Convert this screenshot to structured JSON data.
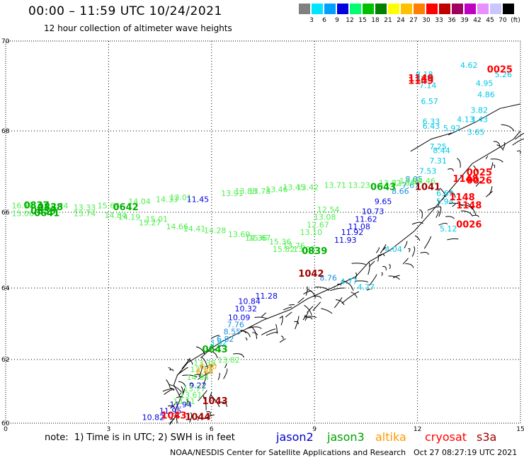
{
  "header": {
    "title": "00:00 – 11:59 UTC 10/24/2021",
    "subtitle": "12 hour collection of altimeter wave heights"
  },
  "legend": {
    "unit": "(ft)",
    "swatches": [
      {
        "color": "#808080",
        "label": "3"
      },
      {
        "color": "#00e5ff",
        "label": "6"
      },
      {
        "color": "#00a0ff",
        "label": "9"
      },
      {
        "color": "#0000e0",
        "label": "12"
      },
      {
        "color": "#00ff70",
        "label": "15"
      },
      {
        "color": "#00c000",
        "label": "18"
      },
      {
        "color": "#008000",
        "label": "21"
      },
      {
        "color": "#ffff00",
        "label": "24"
      },
      {
        "color": "#ffc000",
        "label": "27"
      },
      {
        "color": "#ff8000",
        "label": "30"
      },
      {
        "color": "#ff0000",
        "label": "33"
      },
      {
        "color": "#c00000",
        "label": "36"
      },
      {
        "color": "#a00060",
        "label": "39"
      },
      {
        "color": "#c000c0",
        "label": "42"
      },
      {
        "color": "#e890ff",
        "label": "45"
      },
      {
        "color": "#c8c8ff",
        "label": "70"
      },
      {
        "color": "#000000",
        "label": ""
      }
    ]
  },
  "axes": {
    "lat_labels": [
      "70",
      "68",
      "66",
      "64",
      "62",
      "60"
    ],
    "lon_labels": [
      "0",
      "3",
      "6",
      "9",
      "12",
      "15"
    ]
  },
  "chart_data": {
    "type": "scatter",
    "x_range": [
      0,
      15
    ],
    "y_range": [
      60,
      70
    ],
    "colors": {
      "jason2": "#0000e0",
      "jason3": "#00b000",
      "altika": "#ff9900",
      "cryosat": "#ff0000",
      "s3a": "#a00000",
      "light": "#50ee50",
      "cyan": "#00c8e8",
      "sky": "#1890e0"
    },
    "labels": [
      {
        "lon": 12.2,
        "lat": 69.2,
        "t": "8.18",
        "c": "cyan"
      },
      {
        "lon": 12.2,
        "lat": 69.1,
        "t": "8.11",
        "c": "cyan"
      },
      {
        "lon": 12.3,
        "lat": 68.95,
        "t": "7.14",
        "c": "cyan"
      },
      {
        "lon": 12.35,
        "lat": 68.6,
        "t": "6.57",
        "c": "cyan"
      },
      {
        "lon": 12.4,
        "lat": 68.15,
        "t": "6.33",
        "c": "cyan"
      },
      {
        "lon": 12.4,
        "lat": 68.05,
        "t": "6.43",
        "c": "cyan"
      },
      {
        "lon": 12.6,
        "lat": 67.55,
        "t": "7.25",
        "c": "cyan"
      },
      {
        "lon": 12.7,
        "lat": 67.45,
        "t": "8.44",
        "c": "cyan"
      },
      {
        "lon": 12.6,
        "lat": 67.2,
        "t": "7.31",
        "c": "cyan"
      },
      {
        "lon": 12.3,
        "lat": 66.95,
        "t": "7.53",
        "c": "cyan"
      },
      {
        "lon": 11.9,
        "lat": 66.75,
        "t": "8.05",
        "c": "sky"
      },
      {
        "lon": 11.8,
        "lat": 66.6,
        "t": "7.67",
        "c": "sky"
      },
      {
        "lon": 11.5,
        "lat": 66.45,
        "t": "8.66",
        "c": "sky"
      },
      {
        "lon": 11.0,
        "lat": 66.2,
        "t": "9.65",
        "c": "jason2"
      },
      {
        "lon": 10.7,
        "lat": 65.95,
        "t": "10.73",
        "c": "jason2"
      },
      {
        "lon": 10.5,
        "lat": 65.75,
        "t": "11.62",
        "c": "jason2"
      },
      {
        "lon": 10.3,
        "lat": 65.55,
        "t": "11.08",
        "c": "jason2"
      },
      {
        "lon": 10.1,
        "lat": 65.4,
        "t": "11.92",
        "c": "jason2"
      },
      {
        "lon": 9.9,
        "lat": 65.2,
        "t": "11.93",
        "c": "jason2"
      },
      {
        "lon": 13.5,
        "lat": 69.4,
        "t": "4.62",
        "c": "cyan"
      },
      {
        "lon": 14.5,
        "lat": 69.2,
        "t": "5.26",
        "c": "cyan"
      },
      {
        "lon": 13.95,
        "lat": 69.0,
        "t": "4.95",
        "c": "cyan"
      },
      {
        "lon": 14.0,
        "lat": 68.75,
        "t": "4.86",
        "c": "cyan"
      },
      {
        "lon": 13.8,
        "lat": 68.4,
        "t": "3.82",
        "c": "cyan"
      },
      {
        "lon": 13.4,
        "lat": 68.2,
        "t": "4.13",
        "c": "cyan"
      },
      {
        "lon": 13.8,
        "lat": 68.2,
        "t": "3.43",
        "c": "cyan"
      },
      {
        "lon": 13.0,
        "lat": 68.0,
        "t": "5.92",
        "c": "cyan"
      },
      {
        "lon": 13.7,
        "lat": 67.9,
        "t": "3.65",
        "c": "cyan"
      },
      {
        "lon": 12.8,
        "lat": 66.4,
        "t": "6.69",
        "c": "cyan"
      },
      {
        "lon": 12.8,
        "lat": 66.2,
        "t": "5.94",
        "c": "cyan"
      },
      {
        "lon": 12.9,
        "lat": 65.5,
        "t": "5.12",
        "c": "cyan"
      },
      {
        "lon": 11.3,
        "lat": 64.95,
        "t": "4.04",
        "c": "cyan"
      },
      {
        "lon": 10.0,
        "lat": 64.1,
        "t": "4.77",
        "c": "cyan"
      },
      {
        "lon": 9.4,
        "lat": 64.2,
        "t": "8.76",
        "c": "sky"
      },
      {
        "lon": 10.5,
        "lat": 63.95,
        "t": "4.77",
        "c": "cyan"
      },
      {
        "lon": 7.6,
        "lat": 63.7,
        "t": "11.28",
        "c": "jason2"
      },
      {
        "lon": 7.1,
        "lat": 63.55,
        "t": "10.84",
        "c": "jason2"
      },
      {
        "lon": 7.0,
        "lat": 63.35,
        "t": "10.32",
        "c": "jason2"
      },
      {
        "lon": 6.8,
        "lat": 63.1,
        "t": "10.09",
        "c": "jason2"
      },
      {
        "lon": 6.7,
        "lat": 62.9,
        "t": "7.76",
        "c": "sky"
      },
      {
        "lon": 6.6,
        "lat": 62.7,
        "t": "8.55",
        "c": "sky"
      },
      {
        "lon": 6.4,
        "lat": 62.5,
        "t": "6.82",
        "c": "sky"
      },
      {
        "lon": 6.2,
        "lat": 62.4,
        "t": "3.02",
        "c": "cyan"
      },
      {
        "lon": 5.6,
        "lat": 61.1,
        "t": "9.22",
        "c": "jason2"
      },
      {
        "lon": 5.1,
        "lat": 60.5,
        "t": "11.94",
        "c": "jason2"
      },
      {
        "lon": 4.3,
        "lat": 60.1,
        "t": "10.82",
        "c": "jason2"
      },
      {
        "lon": 4.8,
        "lat": 60.3,
        "t": "11.95",
        "c": "jason2"
      },
      {
        "lon": 0.5,
        "lat": 66.1,
        "t": "16.18",
        "c": "light"
      },
      {
        "lon": 0.5,
        "lat": 65.9,
        "t": "15.06",
        "c": "light"
      },
      {
        "lon": 1.5,
        "lat": 66.1,
        "t": "14.44",
        "c": "light"
      },
      {
        "lon": 2.3,
        "lat": 66.05,
        "t": "13.33",
        "c": "light"
      },
      {
        "lon": 2.3,
        "lat": 65.9,
        "t": "13.74",
        "c": "light"
      },
      {
        "lon": 3.0,
        "lat": 66.1,
        "t": "15.64",
        "c": "light"
      },
      {
        "lon": 3.2,
        "lat": 65.85,
        "t": "14.84",
        "c": "light"
      },
      {
        "lon": 3.6,
        "lat": 65.8,
        "t": "14.19",
        "c": "light"
      },
      {
        "lon": 3.9,
        "lat": 66.2,
        "t": "14.04",
        "c": "light"
      },
      {
        "lon": 4.4,
        "lat": 65.75,
        "t": "15.01",
        "c": "light"
      },
      {
        "lon": 4.2,
        "lat": 65.65,
        "t": "15.27",
        "c": "light"
      },
      {
        "lon": 4.7,
        "lat": 66.25,
        "t": "14.33",
        "c": "light"
      },
      {
        "lon": 5.1,
        "lat": 66.3,
        "t": "13.01",
        "c": "light"
      },
      {
        "lon": 5.0,
        "lat": 65.55,
        "t": "14.66",
        "c": "light"
      },
      {
        "lon": 5.5,
        "lat": 65.5,
        "t": "14.41",
        "c": "light"
      },
      {
        "lon": 5.6,
        "lat": 66.25,
        "t": "11.45",
        "c": "jason2"
      },
      {
        "lon": 6.6,
        "lat": 66.4,
        "t": "13.91",
        "c": "light"
      },
      {
        "lon": 6.1,
        "lat": 65.45,
        "t": "14.28",
        "c": "light"
      },
      {
        "lon": 6.8,
        "lat": 65.35,
        "t": "13.69",
        "c": "light"
      },
      {
        "lon": 7.3,
        "lat": 65.25,
        "t": "14.36",
        "c": "light"
      },
      {
        "lon": 7.0,
        "lat": 66.45,
        "t": "13.88",
        "c": "light"
      },
      {
        "lon": 7.4,
        "lat": 66.45,
        "t": "13.78",
        "c": "light"
      },
      {
        "lon": 7.9,
        "lat": 66.5,
        "t": "13.46",
        "c": "light"
      },
      {
        "lon": 8.4,
        "lat": 66.55,
        "t": "13.45",
        "c": "light"
      },
      {
        "lon": 8.8,
        "lat": 66.55,
        "t": "13.42",
        "c": "light"
      },
      {
        "lon": 9.6,
        "lat": 66.6,
        "t": "13.71",
        "c": "light"
      },
      {
        "lon": 10.3,
        "lat": 66.6,
        "t": "13.23",
        "c": "light"
      },
      {
        "lon": 11.2,
        "lat": 66.65,
        "t": "13.82",
        "c": "light"
      },
      {
        "lon": 11.6,
        "lat": 66.65,
        "t": "11.04",
        "c": "light"
      },
      {
        "lon": 11.8,
        "lat": 66.7,
        "t": "13.94",
        "c": "light"
      },
      {
        "lon": 12.2,
        "lat": 66.7,
        "t": "14.46",
        "c": "light"
      },
      {
        "lon": 9.4,
        "lat": 66.0,
        "t": "12.54",
        "c": "light"
      },
      {
        "lon": 9.3,
        "lat": 65.8,
        "t": "13.08",
        "c": "light"
      },
      {
        "lon": 9.1,
        "lat": 65.6,
        "t": "12.67",
        "c": "light"
      },
      {
        "lon": 8.9,
        "lat": 65.4,
        "t": "13.10",
        "c": "light"
      },
      {
        "lon": 7.4,
        "lat": 65.25,
        "t": "15.67",
        "c": "light"
      },
      {
        "lon": 8.0,
        "lat": 65.15,
        "t": "15.36",
        "c": "light"
      },
      {
        "lon": 8.4,
        "lat": 65.05,
        "t": "13.76",
        "c": "light"
      },
      {
        "lon": 8.1,
        "lat": 64.95,
        "t": "15.82",
        "c": "light"
      },
      {
        "lon": 8.7,
        "lat": 64.95,
        "t": "13.93",
        "c": "light"
      },
      {
        "lon": 6.5,
        "lat": 61.9,
        "t": "13.82",
        "c": "light"
      },
      {
        "lon": 5.8,
        "lat": 61.8,
        "t": "13.38",
        "c": "light"
      },
      {
        "lon": 5.7,
        "lat": 61.6,
        "t": "13.13",
        "c": "light"
      },
      {
        "lon": 5.6,
        "lat": 61.35,
        "t": "14.64",
        "c": "light"
      },
      {
        "lon": 5.5,
        "lat": 61.0,
        "t": "13.77",
        "c": "light"
      },
      {
        "lon": 5.4,
        "lat": 60.8,
        "t": "13.61",
        "c": "light"
      },
      {
        "lon": 5.2,
        "lat": 60.6,
        "t": "13.51",
        "c": "light"
      },
      {
        "lon": 5.9,
        "lat": 61.7,
        "t": "6.40",
        "c": "altika"
      },
      {
        "lon": 5.8,
        "lat": 61.55,
        "t": "6.88",
        "c": "altika"
      },
      {
        "lon": 0.9,
        "lat": 66.1,
        "t": "0837",
        "c": "jason3",
        "b": 1,
        "s": 13
      },
      {
        "lon": 1.3,
        "lat": 66.05,
        "t": "0838",
        "c": "jason3",
        "b": 1,
        "s": 13
      },
      {
        "lon": 1.1,
        "lat": 65.95,
        "t": "0839",
        "c": "jason3",
        "b": 1,
        "s": 13
      },
      {
        "lon": 1.2,
        "lat": 65.9,
        "t": "0641",
        "c": "jason3",
        "b": 1,
        "s": 13
      },
      {
        "lon": 3.5,
        "lat": 66.05,
        "t": "0642",
        "c": "jason3",
        "b": 1,
        "s": 13
      },
      {
        "lon": 11.0,
        "lat": 66.55,
        "t": "0643",
        "c": "jason3",
        "b": 1,
        "s": 13
      },
      {
        "lon": 9.0,
        "lat": 64.9,
        "t": "0839",
        "c": "jason3",
        "b": 1,
        "s": 13
      },
      {
        "lon": 6.1,
        "lat": 62.2,
        "t": "0643",
        "c": "jason3",
        "b": 1,
        "s": 13
      },
      {
        "lon": 12.1,
        "lat": 69.1,
        "t": "1149",
        "c": "cryosat",
        "b": 1,
        "s": 13
      },
      {
        "lon": 12.1,
        "lat": 69.05,
        "t": "1149",
        "c": "cryosat",
        "b": 1,
        "s": 13
      },
      {
        "lon": 14.4,
        "lat": 69.3,
        "t": "0025",
        "c": "cryosat",
        "b": 1,
        "s": 13
      },
      {
        "lon": 13.8,
        "lat": 66.9,
        "t": "0025",
        "c": "cryosat",
        "b": 1,
        "s": 13
      },
      {
        "lon": 13.4,
        "lat": 66.75,
        "t": "1148",
        "c": "cryosat",
        "b": 1,
        "s": 13
      },
      {
        "lon": 13.8,
        "lat": 66.7,
        "t": "0026",
        "c": "cryosat",
        "b": 1,
        "s": 13
      },
      {
        "lon": 13.3,
        "lat": 66.3,
        "t": "1148",
        "c": "cryosat",
        "b": 1,
        "s": 13
      },
      {
        "lon": 13.5,
        "lat": 66.1,
        "t": "1148",
        "c": "cryosat",
        "b": 1,
        "s": 13
      },
      {
        "lon": 13.5,
        "lat": 65.6,
        "t": "0026",
        "c": "cryosat",
        "b": 1,
        "s": 13
      },
      {
        "lon": 12.3,
        "lat": 66.55,
        "t": "1041",
        "c": "s3a",
        "b": 1,
        "s": 13
      },
      {
        "lon": 8.9,
        "lat": 64.3,
        "t": "1042",
        "c": "s3a",
        "b": 1,
        "s": 13
      },
      {
        "lon": 6.1,
        "lat": 60.6,
        "t": "1043",
        "c": "s3a",
        "b": 1,
        "s": 13
      },
      {
        "lon": 5.6,
        "lat": 60.1,
        "t": "1044",
        "c": "s3a",
        "b": 1,
        "s": 13
      },
      {
        "lon": 4.9,
        "lat": 60.15,
        "t": "1043",
        "c": "cryosat",
        "b": 1,
        "s": 13
      }
    ]
  },
  "note": "note:  1) Time is in UTC; 2) SWH is in feet",
  "satellites": [
    {
      "name": "jason2",
      "color": "#0000cc",
      "x": 390
    },
    {
      "name": "jason3",
      "color": "#00a000",
      "x": 462
    },
    {
      "name": "altika",
      "color": "#ff9900",
      "x": 530
    },
    {
      "name": "cryosat",
      "color": "#ff0000",
      "x": 600
    },
    {
      "name": "s3a",
      "color": "#a00000",
      "x": 673
    }
  ],
  "footer": {
    "credit": "NOAA/NESDIS Center for Satellite Applications and Research",
    "timestamp": "Oct 27 08:27:19 UTC 2021"
  }
}
